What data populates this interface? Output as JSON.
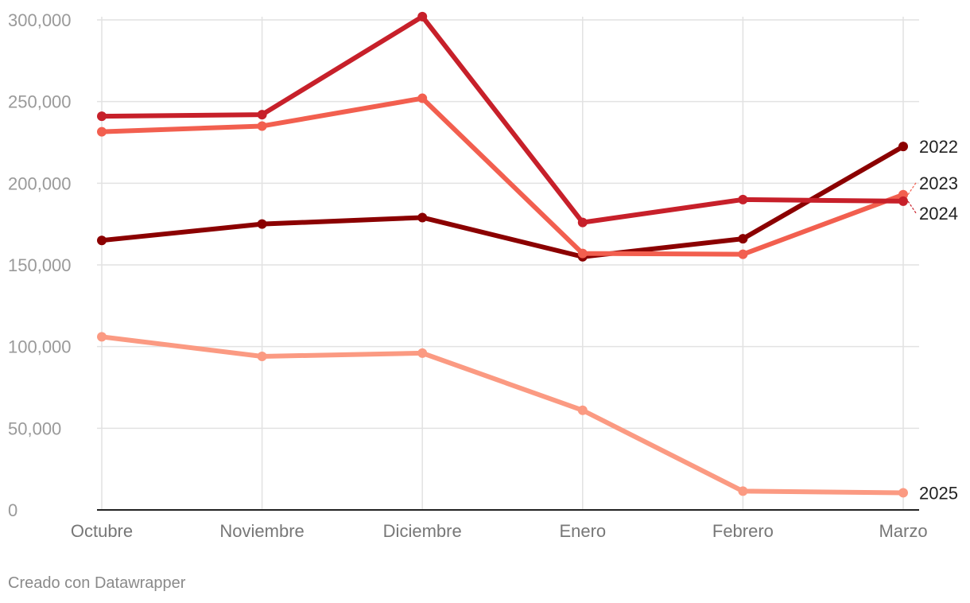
{
  "chart_data": {
    "type": "line",
    "categories": [
      "Octubre",
      "Noviembre",
      "Diciembre",
      "Enero",
      "Febrero",
      "Marzo"
    ],
    "ylim": [
      0,
      300000
    ],
    "yticks": [
      0,
      50000,
      100000,
      150000,
      200000,
      250000,
      300000
    ],
    "ytick_labels": [
      "0",
      "50,000",
      "100,000",
      "150,000",
      "200,000",
      "250,000",
      "300,000"
    ],
    "grid": true,
    "series": [
      {
        "name": "2022",
        "color": "#8b0000",
        "values": [
          165000,
          175000,
          179000,
          155000,
          166000,
          222500
        ]
      },
      {
        "name": "2023",
        "color": "#f25f4f",
        "values": [
          231500,
          235000,
          252000,
          157000,
          156500,
          193000
        ]
      },
      {
        "name": "2024",
        "color": "#c7202a",
        "values": [
          241000,
          242000,
          302000,
          176000,
          190000,
          189000
        ]
      },
      {
        "name": "2025",
        "color": "#fb9a82",
        "values": [
          106000,
          94000,
          96000,
          61000,
          11500,
          10500
        ]
      }
    ]
  },
  "footer": {
    "credit": "Creado con Datawrapper"
  }
}
